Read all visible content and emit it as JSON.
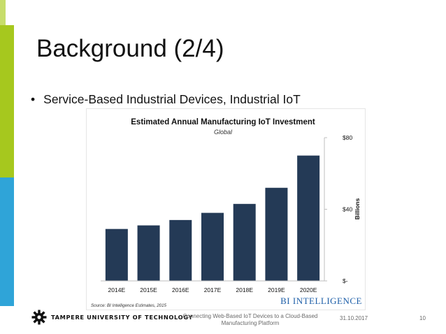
{
  "slide": {
    "title": "Background (2/4)",
    "bullet": "Service-Based Industrial Devices, Industrial IoT",
    "bullet_marker": "•"
  },
  "chart_data": {
    "type": "bar",
    "title": "Estimated Annual Manufacturing IoT Investment",
    "subtitle": "Global",
    "categories": [
      "2014E",
      "2015E",
      "2016E",
      "2017E",
      "2018E",
      "2019E",
      "2020E"
    ],
    "values": [
      29,
      31,
      34,
      38,
      43,
      52,
      70
    ],
    "ylabel": "Billions",
    "ylim": [
      0,
      80
    ],
    "ytick_values": [
      0,
      40,
      80
    ],
    "ytick_labels": [
      "$-",
      "$40",
      "$80"
    ],
    "yaxis_side": "right",
    "grid": false,
    "bar_color": "#243a56",
    "source": "Source: BI Intelligence Estimates, 2015",
    "brand": "BI INTELLIGENCE",
    "brand_color": "#1e5fa8"
  },
  "footer": {
    "university": "TAMPERE UNIVERSITY OF TECHNOLOGY",
    "center_line1": "Connecting Web-Based IoT Devices to a Cloud-Based",
    "center_line2": "Manufacturing Platform",
    "date": "31.10.2017",
    "page": "10",
    "logo_icon": "gear-icon"
  }
}
